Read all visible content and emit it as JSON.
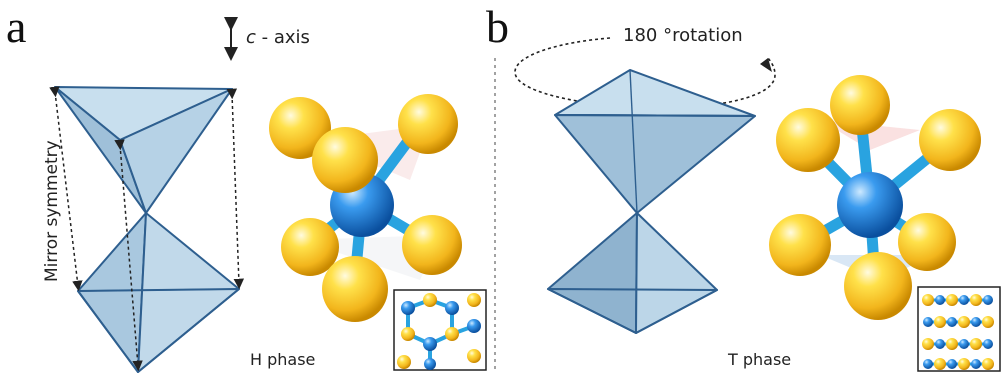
{
  "panel_a": {
    "letter": "a",
    "axis_prefix": "c",
    "axis_label": "- axis",
    "mirror_label": "Mirror symmetry",
    "phase_label": "H phase"
  },
  "panel_b": {
    "letter": "b",
    "rotation_label": "180 °rotation",
    "phase_label": "T phase"
  },
  "colors": {
    "polyhedron_face": "#b9d4e6",
    "polyhedron_dark": "#8fb3cf",
    "polyhedron_edge": "#2e5f8f",
    "chalcogen_atom": "#f2b51c",
    "metal_atom": "#1f7fd6",
    "bond": "#29a3e0"
  },
  "icons": [
    "double-arrow-icon",
    "rotation-arrow-icon",
    "dashed-mirror-arrow-icon"
  ]
}
